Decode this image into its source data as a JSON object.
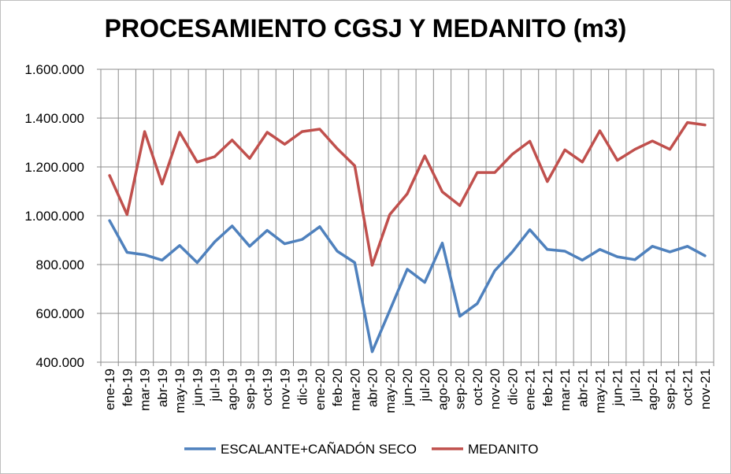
{
  "chart_data": {
    "type": "line",
    "title": "PROCESAMIENTO CGSJ Y MEDANITO (m3)",
    "xlabel": "",
    "ylabel": "",
    "ylim": [
      400000,
      1600000
    ],
    "y_ticks": [
      400000,
      600000,
      800000,
      1000000,
      1200000,
      1400000,
      1600000
    ],
    "y_tick_labels": [
      "400.000",
      "600.000",
      "800.000",
      "1.000.000",
      "1.200.000",
      "1.400.000",
      "1.600.000"
    ],
    "grid": true,
    "legend": "bottom",
    "categories": [
      "ene-19",
      "feb-19",
      "mar-19",
      "abr-19",
      "may-19",
      "jun-19",
      "jul-19",
      "ago-19",
      "sep-19",
      "oct-19",
      "nov-19",
      "dic-19",
      "ene-20",
      "feb-20",
      "mar-20",
      "abr-20",
      "may-20",
      "jun-20",
      "jul-20",
      "ago-20",
      "sep-20",
      "oct-20",
      "nov-20",
      "dic-20",
      "ene-21",
      "feb-21",
      "mar-21",
      "abr-21",
      "may-21",
      "jun-21",
      "jul-21",
      "ago-21",
      "sep-21",
      "oct-21",
      "nov-21"
    ],
    "series": [
      {
        "name": "ESCALANTE+CAÑADÓN SECO",
        "color": "#4f81bd",
        "values": [
          980000,
          850000,
          840000,
          818000,
          878000,
          808000,
          893000,
          958000,
          875000,
          940000,
          885000,
          903000,
          955000,
          855000,
          808000,
          443000,
          612000,
          781000,
          727000,
          888000,
          588000,
          640000,
          775000,
          852000,
          943000,
          862000,
          855000,
          818000,
          862000,
          832000,
          820000,
          875000,
          852000,
          875000,
          836000
        ]
      },
      {
        "name": "MEDANITO",
        "color": "#c0504d",
        "values": [
          1165000,
          1005000,
          1345000,
          1130000,
          1342000,
          1220000,
          1242000,
          1310000,
          1235000,
          1342000,
          1293000,
          1345000,
          1355000,
          1275000,
          1205000,
          797000,
          1005000,
          1090000,
          1245000,
          1098000,
          1042000,
          1177000,
          1177000,
          1252000,
          1305000,
          1140000,
          1270000,
          1220000,
          1348000,
          1227000,
          1272000,
          1306000,
          1272000,
          1382000,
          1372000
        ]
      }
    ]
  }
}
